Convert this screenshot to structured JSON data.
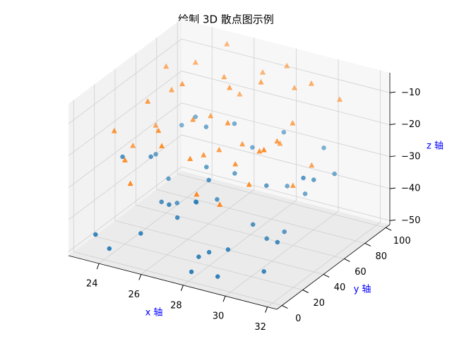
{
  "chart_data": {
    "type": "scatter3d",
    "title": "绘制 3D 散点图示例",
    "xlabel": "x 轴",
    "ylabel": "y 轴",
    "zlabel": "z 轴",
    "axis_label_color": "#0000ff",
    "xlim": [
      22.55,
      32.45
    ],
    "ylim": [
      -4.95,
      103.95
    ],
    "zlim": [
      -51.25,
      -3.75
    ],
    "xticks": [
      24,
      26,
      28,
      30,
      32
    ],
    "yticks": [
      0,
      20,
      40,
      60,
      80,
      100
    ],
    "zticks": [
      {
        "value": -50,
        "label": "−50"
      },
      {
        "value": -40,
        "label": "−40"
      },
      {
        "value": -30,
        "label": "−30"
      },
      {
        "value": -20,
        "label": "−20"
      },
      {
        "value": -10,
        "label": "−10"
      }
    ],
    "grid": true,
    "series": [
      {
        "color": "#1f77b4",
        "marker": "o",
        "x": [
          23,
          24,
          25,
          26,
          27,
          28,
          29,
          30,
          31,
          23,
          24,
          25,
          26,
          27,
          28,
          29,
          30,
          31,
          23,
          25,
          27,
          29,
          31,
          24,
          26,
          28,
          30,
          23,
          25,
          27,
          29,
          31,
          24,
          26,
          28,
          30,
          27,
          29,
          25,
          31
        ],
        "y": [
          12,
          45,
          78,
          30,
          65,
          10,
          55,
          90,
          25,
          70,
          5,
          50,
          85,
          40,
          20,
          75,
          35,
          60,
          95,
          15,
          48,
          8,
          80,
          62,
          22,
          92,
          52,
          38,
          68,
          28,
          42,
          12,
          88,
          58,
          3,
          72,
          82,
          18,
          35,
          50
        ],
        "z": [
          -48,
          -30,
          -27,
          -42,
          -35,
          -46,
          -33,
          -28,
          -40,
          -37,
          -49,
          -44,
          -26,
          -31,
          -47,
          -38,
          -43,
          -29,
          -34,
          -45,
          -39,
          -50,
          -32,
          -41,
          -36,
          -27,
          -45,
          -30,
          -48,
          -35,
          -42,
          -46,
          -28,
          -33,
          -49,
          -38,
          -31,
          -44,
          -40,
          -26
        ]
      },
      {
        "color": "#ff7f0e",
        "marker": "^",
        "x": [
          23,
          24,
          25,
          26,
          27,
          28,
          29,
          30,
          31,
          23,
          24,
          25,
          26,
          27,
          28,
          29,
          30,
          31,
          24,
          26,
          28,
          30,
          23,
          25,
          27,
          29,
          31,
          24,
          26,
          28,
          30,
          25,
          27,
          29,
          31,
          23,
          28,
          26,
          30,
          27
        ],
        "y": [
          80,
          20,
          55,
          90,
          35,
          70,
          10,
          45,
          85,
          30,
          65,
          5,
          75,
          50,
          95,
          25,
          60,
          40,
          88,
          15,
          52,
          78,
          48,
          32,
          92,
          68,
          12,
          42,
          62,
          8,
          28,
          98,
          22,
          82,
          58,
          70,
          38,
          45,
          18,
          60
        ],
        "z": [
          -12,
          -25,
          -8,
          -18,
          -22,
          -6,
          -28,
          -15,
          -10,
          -20,
          -14,
          -27,
          -9,
          -24,
          -7,
          -19,
          -13,
          -26,
          -11,
          -16,
          -21,
          -5,
          -29,
          -17,
          -10,
          -23,
          -8,
          -12,
          -18,
          -26,
          -14,
          -6,
          -20,
          -9,
          -24,
          -28,
          -11,
          -15,
          -22,
          -7
        ]
      }
    ]
  }
}
